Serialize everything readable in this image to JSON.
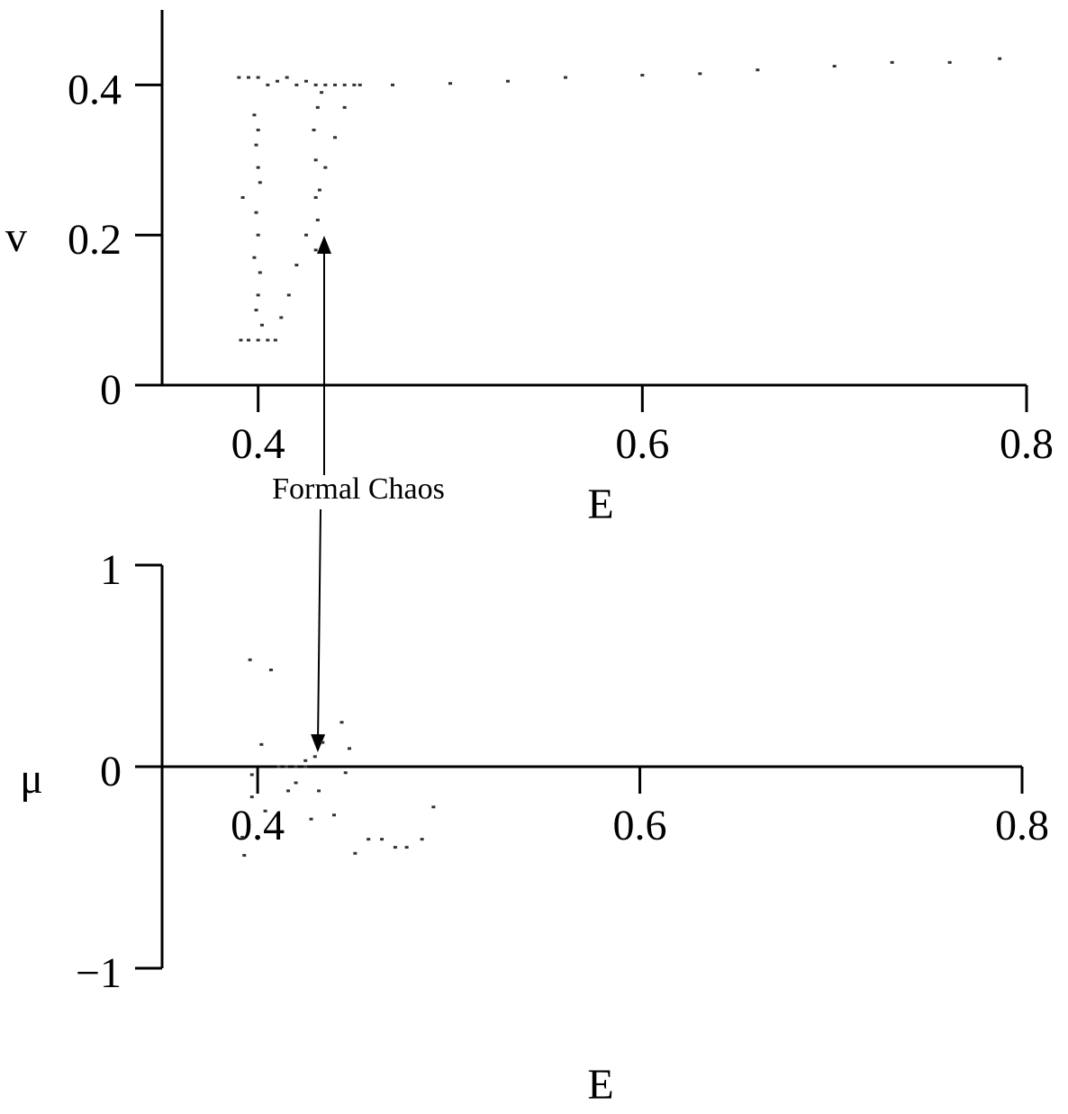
{
  "chart_data": [
    {
      "type": "scatter",
      "xlabel": "E",
      "ylabel": "v",
      "annotation": "Formal Chaos",
      "xlim": [
        0.35,
        0.8
      ],
      "xticks": [
        0.4,
        0.6,
        0.8
      ],
      "ylim": [
        0,
        0.5
      ],
      "yticks": [
        0,
        0.2,
        0.4
      ],
      "grid": false,
      "color": "#333333",
      "x": [
        0.391,
        0.395,
        0.4,
        0.405,
        0.409,
        0.392,
        0.398,
        0.399,
        0.4,
        0.401,
        0.399,
        0.4,
        0.398,
        0.401,
        0.4,
        0.399,
        0.402,
        0.4,
        0.412,
        0.416,
        0.42,
        0.425,
        0.43,
        0.435,
        0.44,
        0.445,
        0.45,
        0.43,
        0.431,
        0.432,
        0.43,
        0.429,
        0.431,
        0.433,
        0.39,
        0.395,
        0.4,
        0.405,
        0.41,
        0.415,
        0.42,
        0.425,
        0.43,
        0.435,
        0.44,
        0.445,
        0.453,
        0.47,
        0.5,
        0.53,
        0.56,
        0.6,
        0.63,
        0.66,
        0.7,
        0.73,
        0.76,
        0.786
      ],
      "values": [
        0.06,
        0.06,
        0.06,
        0.06,
        0.06,
        0.25,
        0.36,
        0.32,
        0.29,
        0.27,
        0.23,
        0.2,
        0.17,
        0.15,
        0.12,
        0.1,
        0.08,
        0.34,
        0.09,
        0.12,
        0.16,
        0.2,
        0.25,
        0.29,
        0.33,
        0.37,
        0.4,
        0.18,
        0.22,
        0.26,
        0.3,
        0.34,
        0.37,
        0.39,
        0.41,
        0.41,
        0.41,
        0.4,
        0.405,
        0.41,
        0.4,
        0.405,
        0.4,
        0.4,
        0.4,
        0.4,
        0.4,
        0.4,
        0.402,
        0.405,
        0.41,
        0.413,
        0.415,
        0.42,
        0.425,
        0.43,
        0.43,
        0.435
      ]
    },
    {
      "type": "scatter",
      "xlabel": "E",
      "ylabel": "μ",
      "xlim": [
        0.35,
        0.8
      ],
      "xticks": [
        0.4,
        0.6,
        0.8
      ],
      "ylim": [
        -1,
        1
      ],
      "yticks": [
        {
          "value": -1,
          "label": "−1"
        },
        0,
        1
      ],
      "grid": false,
      "color": "#333333",
      "x": [
        0.396,
        0.407,
        0.402,
        0.397,
        0.397,
        0.404,
        0.411,
        0.415,
        0.42,
        0.425,
        0.425,
        0.43,
        0.434,
        0.444,
        0.448,
        0.446,
        0.428,
        0.44,
        0.392,
        0.393,
        0.451,
        0.458,
        0.465,
        0.472,
        0.478,
        0.486,
        0.492,
        0.416,
        0.42,
        0.432
      ],
      "values": [
        0.53,
        0.48,
        0.11,
        -0.04,
        -0.15,
        -0.22,
        0,
        0,
        0,
        0,
        0.03,
        0.05,
        0.12,
        0.22,
        0.09,
        -0.03,
        -0.26,
        -0.24,
        -0.35,
        -0.44,
        -0.43,
        -0.36,
        -0.36,
        -0.4,
        -0.4,
        -0.36,
        -0.2,
        -0.12,
        -0.08,
        -0.12
      ]
    }
  ]
}
